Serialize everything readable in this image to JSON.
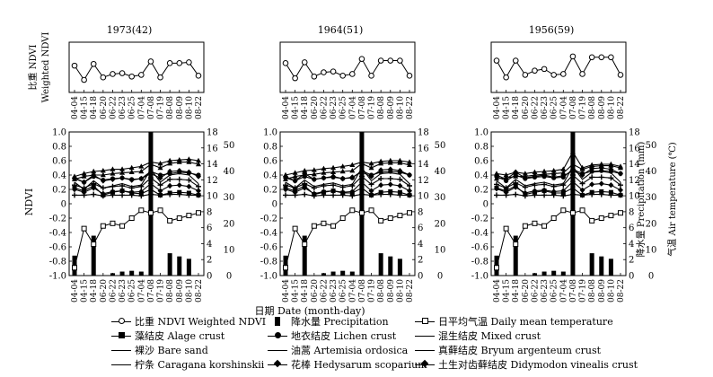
{
  "chart_data": {
    "type": "line",
    "dates": [
      "04-04",
      "04-15",
      "04-18",
      "06-20",
      "06-22",
      "06-23",
      "06-25",
      "07-04",
      "07-08",
      "07-19",
      "08-08",
      "08-09",
      "08-10",
      "08-22"
    ],
    "xlabel": "日期 Date (month-day)",
    "panels": [
      {
        "title": "1973(42)",
        "weighted_ndvi": [
          0.32,
          0.15,
          0.34,
          0.18,
          0.22,
          0.23,
          0.19,
          0.21,
          0.37,
          0.18,
          0.35,
          0.35,
          0.36,
          0.2
        ],
        "ndvi_series": [
          {
            "name": "藻结皮 Alage crust",
            "marker": "square",
            "values": [
              0.22,
              0.18,
              0.25,
              0.12,
              0.16,
              0.18,
              0.15,
              0.14,
              0.2,
              0.12,
              0.15,
              0.16,
              0.15,
              0.12
            ]
          },
          {
            "name": "地衣结皮 Lichen crust",
            "marker": "circle",
            "values": [
              0.35,
              0.3,
              0.38,
              0.33,
              0.35,
              0.36,
              0.34,
              0.35,
              0.45,
              0.4,
              0.42,
              0.44,
              0.43,
              0.4
            ]
          },
          {
            "name": "混生结皮 Mixed crust",
            "marker": "triangle",
            "values": [
              0.38,
              0.42,
              0.45,
              0.46,
              0.48,
              0.48,
              0.5,
              0.52,
              0.58,
              0.56,
              0.6,
              0.61,
              0.62,
              0.6
            ]
          },
          {
            "name": "裸沙 Bare sand",
            "marker": "cross",
            "values": [
              0.12,
              0.12,
              0.13,
              0.11,
              0.12,
              0.12,
              0.12,
              0.11,
              0.13,
              0.12,
              0.13,
              0.13,
              0.12,
              0.12
            ]
          },
          {
            "name": "油蒿 Artemisia ordosica",
            "marker": "line",
            "values": [
              0.3,
              0.2,
              0.32,
              0.22,
              0.25,
              0.28,
              0.24,
              0.26,
              0.48,
              0.3,
              0.4,
              0.42,
              0.4,
              0.28
            ]
          },
          {
            "name": "真藓结皮 Bryum argenteum crust",
            "marker": "triangle",
            "values": [
              0.34,
              0.38,
              0.4,
              0.4,
              0.42,
              0.43,
              0.44,
              0.45,
              0.55,
              0.5,
              0.56,
              0.58,
              0.58,
              0.55
            ]
          },
          {
            "name": "柠条 Caragana korshinskii",
            "marker": "cross",
            "values": [
              0.26,
              0.22,
              0.28,
              0.22,
              0.24,
              0.25,
              0.22,
              0.24,
              0.36,
              0.26,
              0.34,
              0.34,
              0.33,
              0.24
            ]
          },
          {
            "name": "花棒 Hedysarum scoparium",
            "marker": "diamond",
            "values": [
              0.36,
              0.3,
              0.4,
              0.32,
              0.34,
              0.36,
              0.33,
              0.35,
              0.42,
              0.36,
              0.45,
              0.46,
              0.44,
              0.38
            ]
          },
          {
            "name": "土生对齿藓结皮 Didymodon vinealis crust",
            "marker": "diamond",
            "values": [
              0.2,
              0.16,
              0.22,
              0.14,
              0.17,
              0.18,
              0.16,
              0.17,
              0.28,
              0.18,
              0.25,
              0.26,
              0.24,
              0.18
            ]
          }
        ]
      },
      {
        "title": "1964(51)",
        "weighted_ndvi": [
          0.35,
          0.17,
          0.36,
          0.19,
          0.24,
          0.25,
          0.2,
          0.22,
          0.4,
          0.2,
          0.38,
          0.38,
          0.38,
          0.2
        ],
        "ndvi_series": [
          {
            "name": "藻结皮 Alage crust",
            "marker": "square",
            "values": [
              0.22,
              0.18,
              0.25,
              0.13,
              0.16,
              0.18,
              0.15,
              0.15,
              0.22,
              0.12,
              0.16,
              0.17,
              0.16,
              0.12
            ]
          },
          {
            "name": "地衣结皮 Lichen crust",
            "marker": "circle",
            "values": [
              0.36,
              0.32,
              0.38,
              0.34,
              0.36,
              0.37,
              0.35,
              0.36,
              0.46,
              0.4,
              0.44,
              0.45,
              0.44,
              0.4
            ]
          },
          {
            "name": "混生结皮 Mixed crust",
            "marker": "triangle",
            "values": [
              0.4,
              0.43,
              0.46,
              0.47,
              0.49,
              0.5,
              0.52,
              0.54,
              0.58,
              0.56,
              0.59,
              0.6,
              0.6,
              0.58
            ]
          },
          {
            "name": "裸沙 Bare sand",
            "marker": "cross",
            "values": [
              0.12,
              0.12,
              0.13,
              0.11,
              0.12,
              0.12,
              0.12,
              0.11,
              0.13,
              0.12,
              0.13,
              0.13,
              0.12,
              0.12
            ]
          },
          {
            "name": "油蒿 Artemisia ordosica",
            "marker": "line",
            "values": [
              0.3,
              0.22,
              0.33,
              0.24,
              0.27,
              0.29,
              0.25,
              0.27,
              0.5,
              0.32,
              0.42,
              0.43,
              0.41,
              0.28
            ]
          },
          {
            "name": "真藓结皮 Bryum argenteum crust",
            "marker": "triangle",
            "values": [
              0.34,
              0.38,
              0.4,
              0.41,
              0.43,
              0.44,
              0.45,
              0.46,
              0.56,
              0.5,
              0.56,
              0.57,
              0.57,
              0.54
            ]
          },
          {
            "name": "柠条 Caragana korshinskii",
            "marker": "cross",
            "values": [
              0.26,
              0.22,
              0.28,
              0.22,
              0.25,
              0.26,
              0.23,
              0.25,
              0.38,
              0.27,
              0.35,
              0.35,
              0.34,
              0.25
            ]
          },
          {
            "name": "花棒 Hedysarum scoparium",
            "marker": "diamond",
            "values": [
              0.38,
              0.32,
              0.42,
              0.34,
              0.36,
              0.38,
              0.35,
              0.37,
              0.44,
              0.38,
              0.47,
              0.48,
              0.46,
              0.4
            ]
          },
          {
            "name": "土生对齿藓结皮 Didymodon vinealis crust",
            "marker": "diamond",
            "values": [
              0.2,
              0.16,
              0.22,
              0.14,
              0.17,
              0.18,
              0.16,
              0.17,
              0.3,
              0.18,
              0.26,
              0.27,
              0.25,
              0.18
            ]
          }
        ]
      },
      {
        "title": "1956(59)",
        "weighted_ndvi": [
          0.38,
          0.18,
          0.38,
          0.21,
          0.26,
          0.28,
          0.21,
          0.22,
          0.43,
          0.22,
          0.42,
          0.42,
          0.42,
          0.21
        ],
        "ndvi_series": [
          {
            "name": "藻结皮 Alage crust",
            "marker": "square",
            "values": [
              0.22,
              0.18,
              0.25,
              0.13,
              0.16,
              0.18,
              0.15,
              0.15,
              0.22,
              0.12,
              0.16,
              0.17,
              0.16,
              0.12
            ]
          },
          {
            "name": "地衣结皮 Lichen crust",
            "marker": "circle",
            "values": [
              0.38,
              0.32,
              0.4,
              0.35,
              0.37,
              0.38,
              0.36,
              0.37,
              0.48,
              0.42,
              0.45,
              0.46,
              0.45,
              0.42
            ]
          },
          {
            "name": "混生结皮 Mixed crust",
            "marker": "triangle",
            "values": [
              0.42,
              0.4,
              0.44,
              0.42,
              0.44,
              0.45,
              0.46,
              0.48,
              0.72,
              0.5,
              0.54,
              0.55,
              0.55,
              0.52
            ]
          },
          {
            "name": "裸沙 Bare sand",
            "marker": "cross",
            "values": [
              0.12,
              0.12,
              0.13,
              0.11,
              0.12,
              0.12,
              0.12,
              0.11,
              0.13,
              0.12,
              0.13,
              0.13,
              0.12,
              0.12
            ]
          },
          {
            "name": "油蒿 Artemisia ordosica",
            "marker": "line",
            "values": [
              0.32,
              0.22,
              0.34,
              0.25,
              0.28,
              0.3,
              0.26,
              0.28,
              0.52,
              0.34,
              0.44,
              0.45,
              0.43,
              0.3
            ]
          },
          {
            "name": "真藓结皮 Bryum argenteum crust",
            "marker": "triangle",
            "values": [
              0.35,
              0.36,
              0.38,
              0.38,
              0.4,
              0.41,
              0.42,
              0.43,
              0.55,
              0.48,
              0.52,
              0.53,
              0.53,
              0.5
            ]
          },
          {
            "name": "柠条 Caragana korshinskii",
            "marker": "cross",
            "values": [
              0.27,
              0.22,
              0.29,
              0.23,
              0.26,
              0.27,
              0.24,
              0.26,
              0.4,
              0.28,
              0.37,
              0.37,
              0.36,
              0.26
            ]
          },
          {
            "name": "花棒 Hedysarum scoparium",
            "marker": "diamond",
            "values": [
              0.4,
              0.34,
              0.44,
              0.36,
              0.38,
              0.4,
              0.37,
              0.39,
              0.46,
              0.4,
              0.49,
              0.5,
              0.48,
              0.42
            ]
          },
          {
            "name": "土生对齿藓结皮 Didymodon vinealis crust",
            "marker": "diamond",
            "values": [
              0.21,
              0.16,
              0.23,
              0.15,
              0.18,
              0.19,
              0.17,
              0.18,
              0.31,
              0.19,
              0.27,
              0.28,
              0.26,
              0.19
            ]
          }
        ]
      }
    ],
    "precipitation_mm": [
      2.5,
      0,
      5,
      0,
      0.3,
      0.5,
      0.6,
      0.5,
      18,
      0,
      2.8,
      2.4,
      2.1,
      0
    ],
    "daily_mean_temperature_c": [
      3,
      18,
      12,
      19,
      20,
      19,
      22,
      25,
      24,
      25,
      21,
      22,
      23,
      24
    ],
    "axes": {
      "top_ylabel": "比重 NDVI Weighted NDVI",
      "ndvi_ylabel": "NDVI",
      "ndvi_ylim": [
        -1.0,
        1.0
      ],
      "ndvi_ticks": [
        "1.0",
        "0.8",
        "0.6",
        "0.4",
        "0.2",
        "0",
        "-0.2",
        "-0.4",
        "-0.6",
        "-0.8",
        "-1.0"
      ],
      "precip_ylim": [
        0,
        18
      ],
      "precip_ticks": [
        "0",
        "2",
        "4",
        "6",
        "8",
        "10",
        "12",
        "14",
        "16",
        "18"
      ],
      "temp_ylim": [
        0,
        55
      ],
      "temp_ticks": [
        "0",
        "10",
        "20",
        "30",
        "40",
        "50"
      ],
      "precip_ylabel": "降水量 Precipitation (mm)",
      "temp_ylabel": "气温 Air temperature (℃)"
    },
    "legend": [
      {
        "marker": "circle-open",
        "label": "比重 NDVI Weighted NDVI"
      },
      {
        "marker": "bar",
        "label": "降水量 Precipitation"
      },
      {
        "marker": "square-open",
        "label": "日平均气温 Daily mean temperature"
      },
      {
        "marker": "square",
        "label": "藻结皮 Alage crust"
      },
      {
        "marker": "circle",
        "label": "地衣结皮 Lichen crust"
      },
      {
        "marker": "triangle",
        "label": "混生结皮 Mixed crust"
      },
      {
        "marker": "cross",
        "label": "裸沙 Bare sand"
      },
      {
        "marker": "line",
        "label": "油蒿 Artemisia ordosica"
      },
      {
        "marker": "triangle",
        "label": "真藓结皮 Bryum argenteum crust"
      },
      {
        "marker": "cross",
        "label": "柠条 Caragana korshinskii"
      },
      {
        "marker": "diamond",
        "label": "花棒 Hedysarum scoparium"
      },
      {
        "marker": "diamond",
        "label": "土生对齿藓结皮 Didymodon vinealis crust"
      }
    ]
  }
}
